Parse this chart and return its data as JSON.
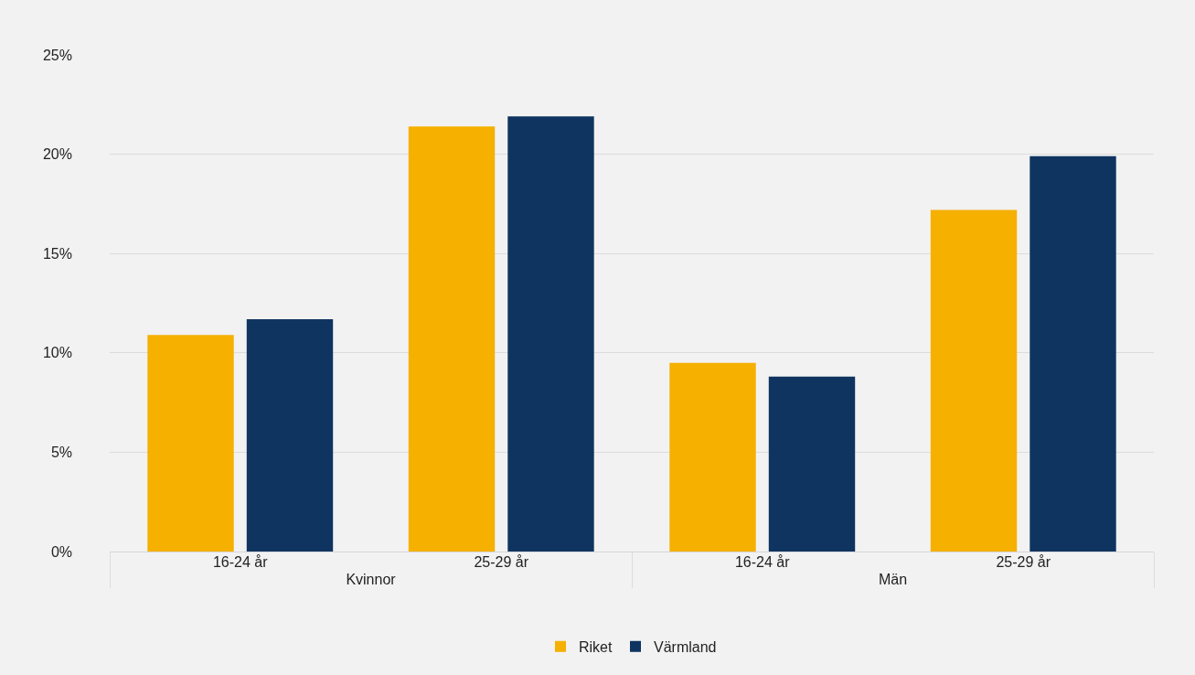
{
  "chart_data": {
    "type": "bar",
    "categories": [
      "16-24 år",
      "25-29 år",
      "16-24 år",
      "25-29 år"
    ],
    "annotations": [
      "Kvinnor",
      "Män"
    ],
    "series": [
      {
        "name": "Riket",
        "color": "#f5b000",
        "values": [
          10.9,
          21.4,
          9.5,
          17.2
        ]
      },
      {
        "name": "Värmland",
        "color": "#0f3460",
        "values": [
          11.7,
          21.9,
          8.8,
          19.9
        ]
      }
    ],
    "ylim": [
      0,
      25
    ],
    "yticks": [
      {
        "value": 0,
        "label": "0%"
      },
      {
        "value": 5,
        "label": "5%"
      },
      {
        "value": 10,
        "label": "10%"
      },
      {
        "value": 15,
        "label": "15%"
      },
      {
        "value": 20,
        "label": "20%"
      },
      {
        "value": 25,
        "label": "25%"
      }
    ],
    "grid": "y",
    "legend": "bottom"
  }
}
